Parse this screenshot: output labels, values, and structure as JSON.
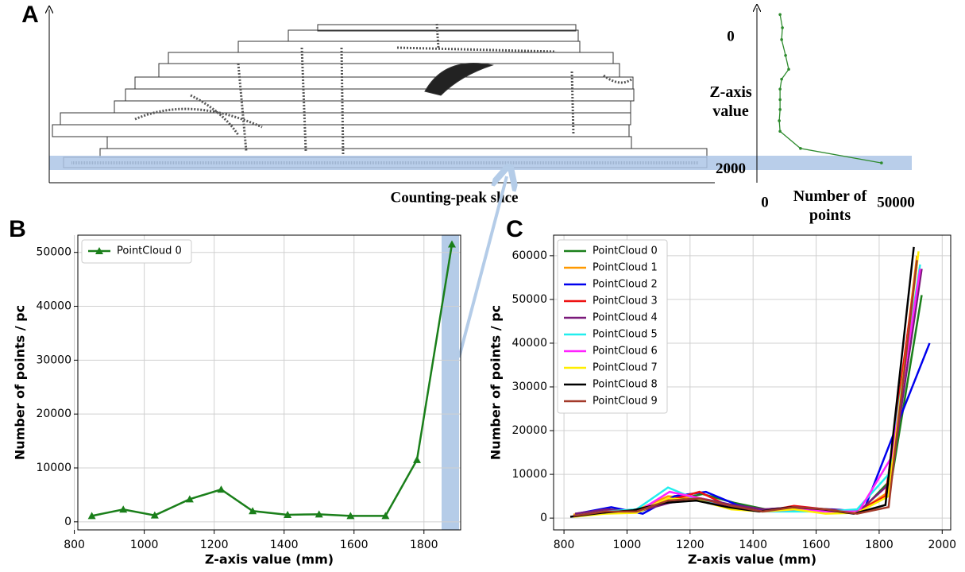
{
  "chart_data": [
    {
      "type": "line",
      "panel_label": "A",
      "annotation": "Counting-peak slice",
      "ylabel": "Z-axis value",
      "xlabel": "Number of points",
      "xlim": [
        0,
        50000
      ],
      "xticks": [
        0,
        50000
      ],
      "ylim": [
        -450,
        2200
      ],
      "yticks": [
        0,
        2000
      ],
      "y_inverted": true,
      "grid": false,
      "series": [
        {
          "color": "#2e8b2e",
          "x": [
            5800,
            6700,
            6400,
            7900,
            9100,
            6400,
            5800,
            5800,
            5800,
            5500,
            5800,
            13600,
            44500
          ],
          "values": [
            -350,
            -150,
            30,
            270,
            480,
            630,
            780,
            940,
            1090,
            1260,
            1420,
            1680,
            1900
          ]
        }
      ]
    },
    {
      "type": "line",
      "panel_label": "B",
      "xlabel": "Z-axis value (mm)",
      "ylabel": "Number of points / pc",
      "xlim": [
        810,
        1905
      ],
      "xticks": [
        800,
        1000,
        1200,
        1400,
        1600,
        1800
      ],
      "ylim": [
        -1500,
        53200
      ],
      "yticks": [
        0,
        10000,
        20000,
        30000,
        40000,
        50000
      ],
      "grid": true,
      "legend": "upper left",
      "series": [
        {
          "name": "PointCloud 0",
          "color": "#1a7f1a",
          "marker": "triangle",
          "x": [
            850,
            940,
            1030,
            1130,
            1220,
            1310,
            1410,
            1500,
            1590,
            1690,
            1780,
            1880
          ],
          "values": [
            1100,
            2300,
            1200,
            4200,
            6000,
            2000,
            1300,
            1400,
            1100,
            1100,
            11500,
            51500
          ]
        }
      ]
    },
    {
      "type": "line",
      "panel_label": "C",
      "xlabel": "Z-axis value (mm)",
      "ylabel": "Number of points / pc",
      "xlim": [
        767,
        2027
      ],
      "xticks": [
        800,
        1000,
        1200,
        1400,
        1600,
        1800,
        2000
      ],
      "ylim": [
        -2700,
        64700
      ],
      "yticks": [
        0,
        10000,
        20000,
        30000,
        40000,
        50000,
        60000
      ],
      "grid": true,
      "legend": "upper left",
      "series": [
        {
          "name": "PointCloud 0",
          "color": "#1a7f1a",
          "x": [
            840,
            940,
            1040,
            1140,
            1240,
            1340,
            1440,
            1540,
            1640,
            1740,
            1840,
            1935
          ],
          "values": [
            1000,
            2000,
            1500,
            4000,
            5500,
            3500,
            2000,
            2500,
            2000,
            1500,
            9000,
            51000
          ]
        },
        {
          "name": "PointCloud 1",
          "color": "#ff9900",
          "x": [
            830,
            930,
            1030,
            1130,
            1230,
            1330,
            1430,
            1530,
            1630,
            1730,
            1830,
            1920
          ],
          "values": [
            800,
            1500,
            1800,
            5000,
            4500,
            2500,
            1500,
            2000,
            1500,
            1200,
            6000,
            60000
          ]
        },
        {
          "name": "PointCloud 2",
          "color": "#0000ee",
          "x": [
            840,
            950,
            1050,
            1150,
            1250,
            1350,
            1450,
            1550,
            1650,
            1750,
            1850,
            1960
          ],
          "values": [
            1000,
            2500,
            1000,
            5000,
            6000,
            3000,
            1500,
            2000,
            2000,
            1500,
            20000,
            40000
          ]
        },
        {
          "name": "PointCloud 3",
          "color": "#ee1111",
          "x": [
            830,
            930,
            1030,
            1130,
            1230,
            1330,
            1430,
            1530,
            1630,
            1730,
            1820,
            1920
          ],
          "values": [
            500,
            1800,
            1500,
            4000,
            6000,
            2500,
            1500,
            2800,
            2000,
            1500,
            5000,
            58000
          ]
        },
        {
          "name": "PointCloud 4",
          "color": "#7a1a7a",
          "x": [
            835,
            935,
            1035,
            1135,
            1235,
            1335,
            1435,
            1535,
            1635,
            1735,
            1835,
            1935
          ],
          "values": [
            1000,
            2000,
            1500,
            3500,
            4500,
            3000,
            2000,
            2500,
            2000,
            1500,
            8000,
            57000
          ]
        },
        {
          "name": "PointCloud 5",
          "color": "#22eeee",
          "x": [
            830,
            930,
            1030,
            1130,
            1230,
            1330,
            1430,
            1530,
            1630,
            1730,
            1830,
            1930
          ],
          "values": [
            500,
            1500,
            2000,
            7000,
            4000,
            2500,
            1500,
            1500,
            1500,
            2000,
            10000,
            58000
          ]
        },
        {
          "name": "PointCloud 6",
          "color": "#ff22ff",
          "x": [
            835,
            935,
            1035,
            1135,
            1235,
            1335,
            1435,
            1535,
            1635,
            1735,
            1840,
            1930
          ],
          "values": [
            500,
            1500,
            1500,
            6000,
            4500,
            2500,
            1500,
            2000,
            1500,
            1500,
            14000,
            57000
          ]
        },
        {
          "name": "PointCloud 7",
          "color": "#ffee00",
          "x": [
            830,
            930,
            1030,
            1130,
            1230,
            1330,
            1430,
            1530,
            1630,
            1730,
            1830,
            1925
          ],
          "values": [
            300,
            1000,
            1200,
            4500,
            4000,
            2000,
            1500,
            2000,
            1000,
            1200,
            5000,
            61000
          ]
        },
        {
          "name": "PointCloud 8",
          "color": "#000000",
          "x": [
            820,
            920,
            1020,
            1120,
            1220,
            1320,
            1420,
            1520,
            1620,
            1720,
            1820,
            1910
          ],
          "values": [
            300,
            1200,
            1800,
            3500,
            4000,
            2500,
            1500,
            2500,
            2000,
            1000,
            3000,
            62000
          ]
        },
        {
          "name": "PointCloud 9",
          "color": "#a33a2a",
          "x": [
            830,
            930,
            1030,
            1130,
            1230,
            1330,
            1430,
            1530,
            1630,
            1730,
            1830,
            1920
          ],
          "values": [
            500,
            1500,
            1500,
            4000,
            4500,
            2800,
            1500,
            2500,
            2000,
            1000,
            2500,
            59000
          ]
        }
      ]
    }
  ]
}
